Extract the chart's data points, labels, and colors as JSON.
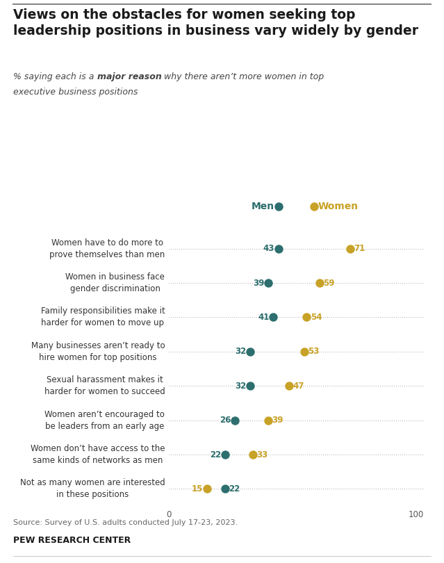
{
  "title": "Views on the obstacles for women seeking top\nleadership positions in business vary widely by gender",
  "categories": [
    "Women have to do more to\nprove themselves than men",
    "Women in business face\ngender discrimination",
    "Family responsibilities make it\nharder for women to move up",
    "Many businesses aren’t ready to\nhire women for top positions",
    "Sexual harassment makes it\nharder for women to succeed",
    "Women aren’t encouraged to\nbe leaders from an early age",
    "Women don’t have access to the\nsame kinds of networks as men",
    "Not as many women are interested\nin these positions"
  ],
  "men_values": [
    43,
    39,
    41,
    32,
    32,
    26,
    22,
    22
  ],
  "women_values": [
    71,
    59,
    54,
    53,
    47,
    39,
    33,
    15
  ],
  "men_color": "#2d6e6e",
  "women_color": "#c8a227",
  "dot_line_color": "#aaaaaa",
  "xlim": [
    0,
    100
  ],
  "source_text": "Source: Survey of U.S. adults conducted July 17-23, 2023.",
  "brand_text": "PEW RESEARCH CENTER",
  "background_color": "#ffffff",
  "title_color": "#1a1a1a",
  "label_color": "#333333",
  "legend_men_label": "Men",
  "legend_women_label": "Women"
}
